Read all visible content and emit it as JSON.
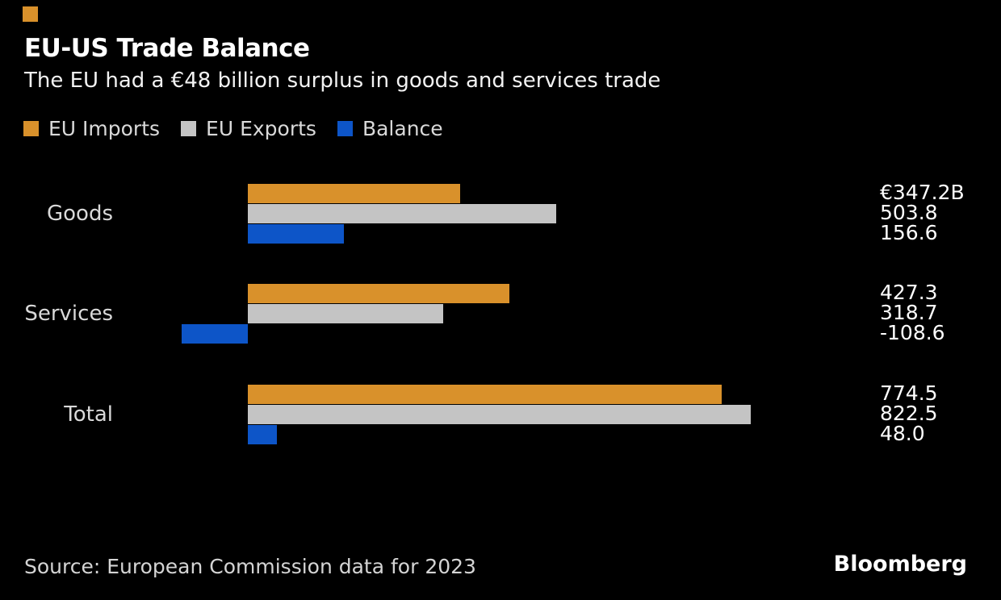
{
  "brand": {
    "accent_color": "#D9912B"
  },
  "header": {
    "title": "EU-US Trade Balance",
    "subtitle": "The EU had a €48 billion surplus in goods and services trade"
  },
  "legend": [
    {
      "label": "EU Imports",
      "color": "#D9912B"
    },
    {
      "label": "EU Exports",
      "color": "#C4C4C4"
    },
    {
      "label": "Balance",
      "color": "#0D55C8"
    }
  ],
  "chart_data": {
    "type": "bar",
    "orientation": "horizontal",
    "title": "EU-US Trade Balance",
    "subtitle": "The EU had a €48 billion surplus in goods and services trade",
    "unit": "billion EUR",
    "categories": [
      "Goods",
      "Services",
      "Total"
    ],
    "series": [
      {
        "name": "EU Imports",
        "color": "#D9912B",
        "values": [
          347.2,
          427.3,
          774.5
        ]
      },
      {
        "name": "EU Exports",
        "color": "#C4C4C4",
        "values": [
          503.8,
          318.7,
          822.5
        ]
      },
      {
        "name": "Balance",
        "color": "#0D55C8",
        "values": [
          156.6,
          -108.6,
          48.0
        ]
      }
    ],
    "value_labels": [
      [
        "€347.2B",
        "503.8",
        "156.6"
      ],
      [
        "427.3",
        "318.7",
        "-108.6"
      ],
      [
        "774.5",
        "822.5",
        "48.0"
      ]
    ],
    "xlim": [
      -110,
      830
    ],
    "grid": false,
    "axis_lines": false,
    "legend_position": "top-left"
  },
  "footer": {
    "source": "Source: European Commission data for 2023",
    "logo": "Bloomberg"
  }
}
